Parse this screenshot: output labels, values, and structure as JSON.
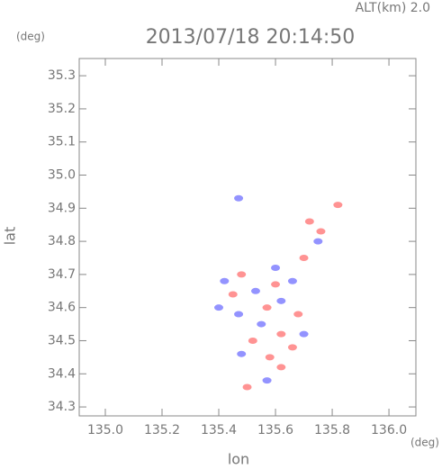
{
  "chart_data": {
    "type": "scatter",
    "title": "2013/07/18 20:14:50",
    "annotations": [
      "ALT(km) 2.0",
      "(deg)",
      "(deg)"
    ],
    "xlabel": "lon",
    "ylabel": "lat",
    "xlim": [
      134.908,
      136.095
    ],
    "ylim": [
      34.273,
      35.352
    ],
    "xticks": [
      {
        "value": 135.0,
        "label": "135.0"
      },
      135.2,
      135.4,
      135.6,
      135.8,
      {
        "value": 136.0,
        "label": "136.0"
      }
    ],
    "yticks": [
      34.3,
      34.4,
      34.5,
      34.6,
      34.7,
      34.8,
      34.9,
      {
        "value": 35.0,
        "label": "35.0"
      },
      35.1,
      35.2,
      35.3
    ],
    "grid": false,
    "series": [
      {
        "color": "#8080ff",
        "x": [
          135.47,
          135.42,
          135.53,
          135.47,
          135.62,
          135.66,
          135.75,
          135.57,
          135.48,
          135.4,
          135.6,
          135.7,
          135.55
        ],
        "y": [
          34.93,
          34.68,
          34.65,
          34.58,
          34.62,
          34.68,
          34.8,
          34.38,
          34.46,
          34.6,
          34.72,
          34.52,
          34.55
        ]
      },
      {
        "color": "#ff8080",
        "x": [
          135.82,
          135.48,
          135.45,
          135.57,
          135.62,
          135.66,
          135.76,
          135.7,
          135.52,
          135.58,
          135.62,
          135.5,
          135.68,
          135.6,
          135.72
        ],
        "y": [
          34.91,
          34.7,
          34.64,
          34.6,
          34.52,
          34.48,
          34.83,
          34.75,
          34.5,
          34.45,
          34.42,
          34.36,
          34.58,
          34.67,
          34.86
        ]
      }
    ]
  }
}
